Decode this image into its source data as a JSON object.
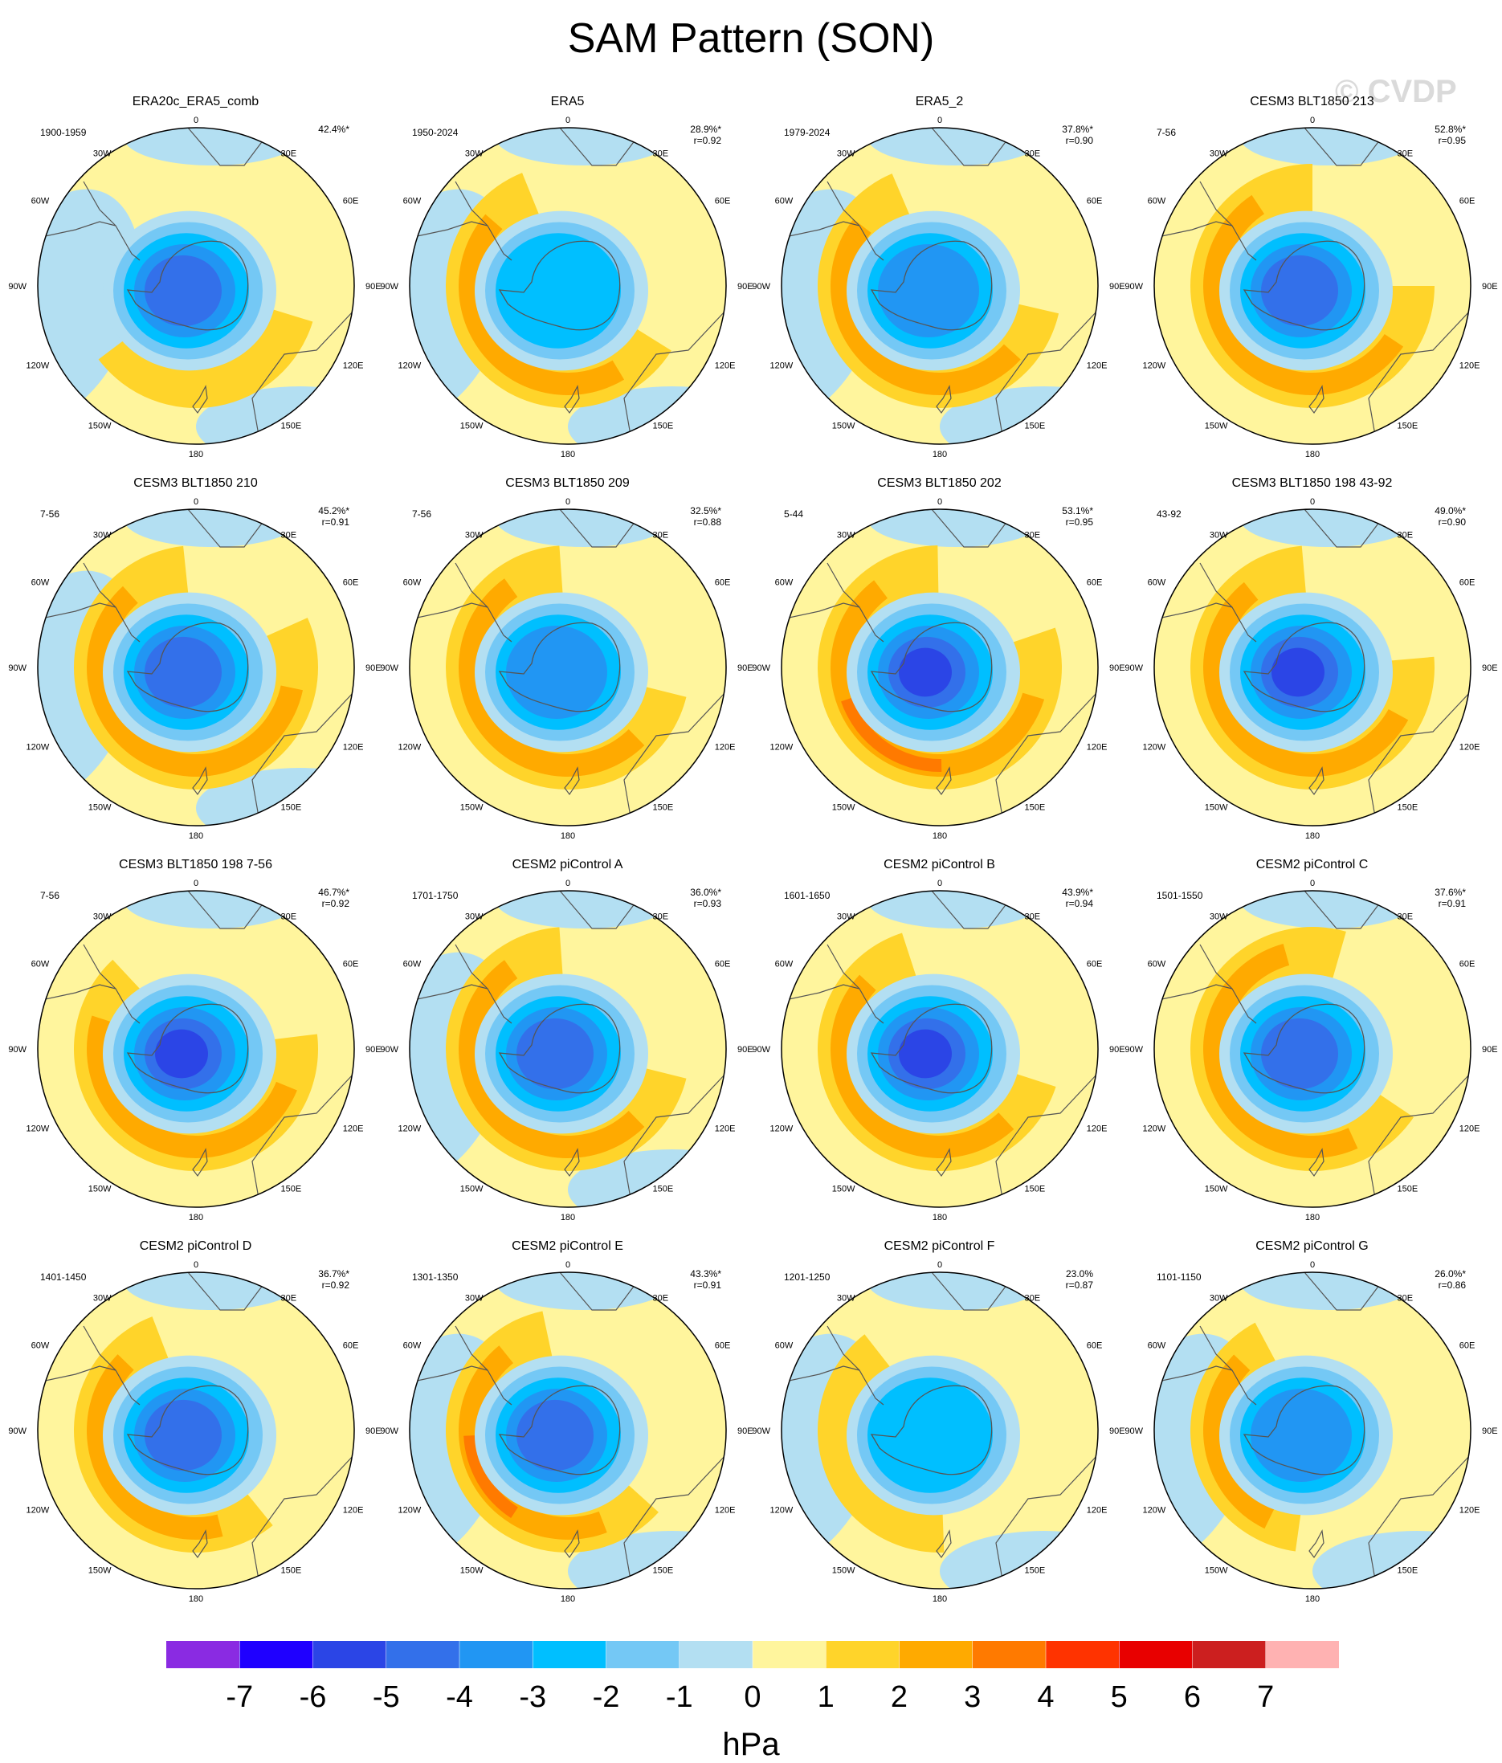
{
  "title": "SAM Pattern (SON)",
  "watermark": "© CVDP",
  "longitude_labels": [
    "0",
    "30E",
    "60E",
    "90E",
    "120E",
    "150E",
    "180",
    "150W",
    "120W",
    "90W",
    "60W",
    "30W"
  ],
  "panels": [
    {
      "title": "ERA20c_ERA5_comb",
      "years": "1900-1959",
      "pct": "42.4%*",
      "r": ""
    },
    {
      "title": "ERA5",
      "years": "1950-2024",
      "pct": "28.9%*",
      "r": "r=0.92"
    },
    {
      "title": "ERA5_2",
      "years": "1979-2024",
      "pct": "37.8%*",
      "r": "r=0.90"
    },
    {
      "title": "CESM3 BLT1850 213",
      "years": "7-56",
      "pct": "52.8%*",
      "r": "r=0.95"
    },
    {
      "title": "CESM3 BLT1850 210",
      "years": "7-56",
      "pct": "45.2%*",
      "r": "r=0.91"
    },
    {
      "title": "CESM3 BLT1850 209",
      "years": "7-56",
      "pct": "32.5%*",
      "r": "r=0.88"
    },
    {
      "title": "CESM3 BLT1850 202",
      "years": "5-44",
      "pct": "53.1%*",
      "r": "r=0.95"
    },
    {
      "title": "CESM3 BLT1850 198 43-92",
      "years": "43-92",
      "pct": "49.0%*",
      "r": "r=0.90"
    },
    {
      "title": "CESM3 BLT1850 198 7-56",
      "years": "7-56",
      "pct": "46.7%*",
      "r": "r=0.92"
    },
    {
      "title": "CESM2 piControl A",
      "years": "1701-1750",
      "pct": "36.0%*",
      "r": "r=0.93"
    },
    {
      "title": "CESM2 piControl B",
      "years": "1601-1650",
      "pct": "43.9%*",
      "r": "r=0.94"
    },
    {
      "title": "CESM2 piControl C",
      "years": "1501-1550",
      "pct": "37.6%*",
      "r": "r=0.91"
    },
    {
      "title": "CESM2 piControl D",
      "years": "1401-1450",
      "pct": "36.7%*",
      "r": "r=0.92"
    },
    {
      "title": "CESM2 piControl E",
      "years": "1301-1350",
      "pct": "43.3%*",
      "r": "r=0.91"
    },
    {
      "title": "CESM2 piControl F",
      "years": "1201-1250",
      "pct": "23.0%",
      "r": "r=0.87"
    },
    {
      "title": "CESM2 piControl G",
      "years": "1101-1150",
      "pct": "26.0%*",
      "r": "r=0.86"
    }
  ],
  "colorbar": {
    "unit": "hPa",
    "colors": [
      "#8a2be2",
      "#1f00ff",
      "#2b45e6",
      "#3370ea",
      "#2196f3",
      "#00bfff",
      "#74c8f5",
      "#b3dff2",
      "#fff59d",
      "#ffd42a",
      "#ffaa00",
      "#ff7a00",
      "#ff3300",
      "#e80000",
      "#cc1f1f",
      "#ffb2b2"
    ],
    "ticks": [
      "-7",
      "-6",
      "-5",
      "-4",
      "-3",
      "-2",
      "-1",
      "0",
      "1",
      "2",
      "3",
      "4",
      "5",
      "6",
      "7"
    ]
  }
}
